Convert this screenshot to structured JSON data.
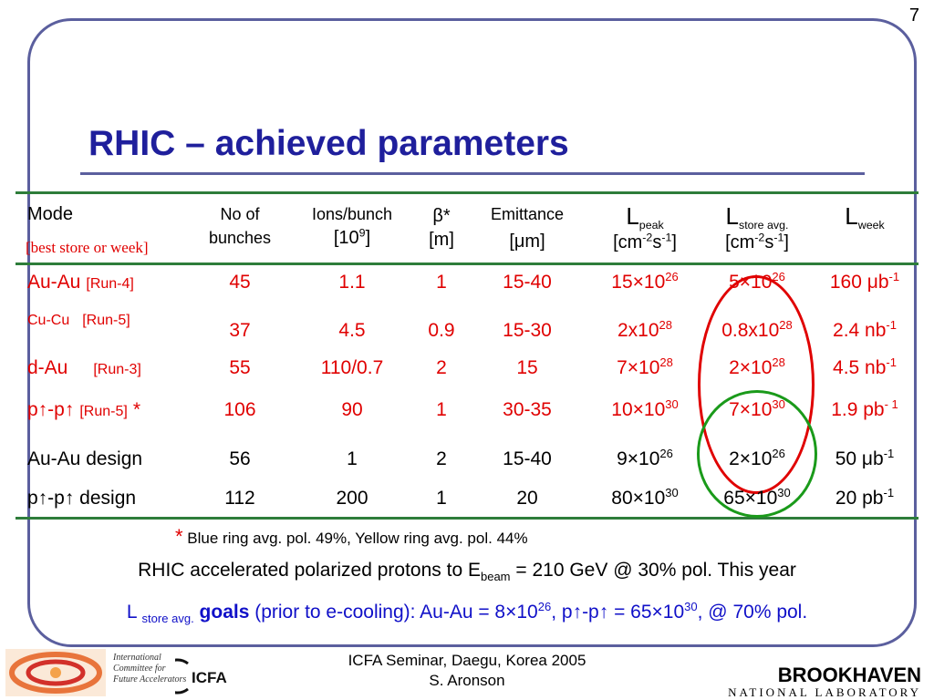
{
  "page_number": "7",
  "title": "RHIC – achieved parameters",
  "table": {
    "header": {
      "mode": "Mode",
      "mode_note": "[best store or week]",
      "bunches_1": "No of",
      "bunches_2": "bunches",
      "ions_1": "Ions/bunch",
      "ions_2": "[10",
      "ions_exp": "9",
      "ions_3": "]",
      "beta_1": "β*",
      "beta_2": "[m]",
      "emit_1": "Emittance",
      "emit_2": "[μm]",
      "lpeak_l": "L",
      "lpeak_sub": "peak",
      "lstore_l": "L",
      "lstore_sub": "store avg.",
      "lweek_l": "L",
      "lweek_sub": "week",
      "unit_a": "[cm",
      "unit_exp1": "-2",
      "unit_b": "s",
      "unit_exp2": "-1",
      "unit_c": "]"
    },
    "rows": [
      {
        "mode": "Au-Au",
        "run": "[Run-4]",
        "star": "",
        "bunches": "45",
        "ions": "1.1",
        "beta": "1",
        "emittance": "15-40",
        "lpeak": "15×10",
        "lpeak_exp": "26",
        "lstore": "5×10",
        "lstore_exp": "26",
        "lweek": "160 μb",
        "lweek_exp": "-1"
      },
      {
        "mode": "Cu-Cu",
        "run": "[Run-5]",
        "star": "",
        "bunches": "37",
        "ions": "4.5",
        "beta": "0.9",
        "emittance": "15-30",
        "lpeak": "2x10",
        "lpeak_exp": "28",
        "lstore": "0.8x10",
        "lstore_exp": "28",
        "lweek": "2.4 nb",
        "lweek_exp": "-1"
      },
      {
        "mode": "d-Au",
        "run": "[Run-3]",
        "star": "",
        "bunches": "55",
        "ions": "110/0.7",
        "beta": "2",
        "emittance": "15",
        "lpeak": "7×10",
        "lpeak_exp": "28",
        "lstore": "2×10",
        "lstore_exp": "28",
        "lweek": "4.5 nb",
        "lweek_exp": "-1"
      },
      {
        "mode": "p↑-p↑",
        "run": "[Run-5]",
        "star": "*",
        "bunches": "106",
        "ions": "90",
        "beta": "1",
        "emittance": "30-35",
        "lpeak": "10×10",
        "lpeak_exp": "30",
        "lstore": "7×10",
        "lstore_exp": "30",
        "lweek": "1.9 pb",
        "lweek_exp": "- 1"
      },
      {
        "mode": "Au-Au design",
        "run": "",
        "star": "",
        "bunches": "56",
        "ions": "1",
        "beta": "2",
        "emittance": "15-40",
        "lpeak": "9×10",
        "lpeak_exp": "26",
        "lstore": "2×10",
        "lstore_exp": "26",
        "lweek": "50 μb",
        "lweek_exp": "-1"
      },
      {
        "mode": "p↑-p↑ design",
        "run": "",
        "star": "",
        "bunches": "112",
        "ions": "200",
        "beta": "1",
        "emittance": "20",
        "lpeak": "80×10",
        "lpeak_exp": "30",
        "lstore": "65×10",
        "lstore_exp": "30",
        "lweek": "20 pb",
        "lweek_exp": "-1"
      }
    ]
  },
  "footnote": {
    "star": "*",
    "text": "Blue ring avg. pol. 49%, Yellow ring avg. pol. 44%"
  },
  "line1": {
    "pre": "RHIC accelerated polarized protons to E",
    "sub": "beam",
    "post": " = 210 GeV @ 30% pol. This year"
  },
  "line2": {
    "l": "L ",
    "sub": "store avg.",
    "goals": " goals",
    "a": " (prior to e-cooling): Au-Au = 8×10",
    "exp1": "26",
    "b": ", p↑-p↑ = 65×10",
    "exp2": "30",
    "c": ", @ 70% pol."
  },
  "footer": {
    "line1": "ICFA Seminar, Daegu, Korea 2005",
    "line2": "S. Aronson"
  },
  "icfa_caption": [
    "International",
    "Committee for",
    "Future Accelerators"
  ],
  "icfa_logo_text": "ICFA",
  "bnl_name": "BROOKHAVEN",
  "bnl_sub": "NATIONAL LABORATORY",
  "colors": {
    "title": "#1f1f9c",
    "frame": "#5b5f9e",
    "rule": "#2e7d3a",
    "highlight_red": "#e00000",
    "highlight_green": "#1a9a1a",
    "goal_blue": "#1010c8"
  }
}
